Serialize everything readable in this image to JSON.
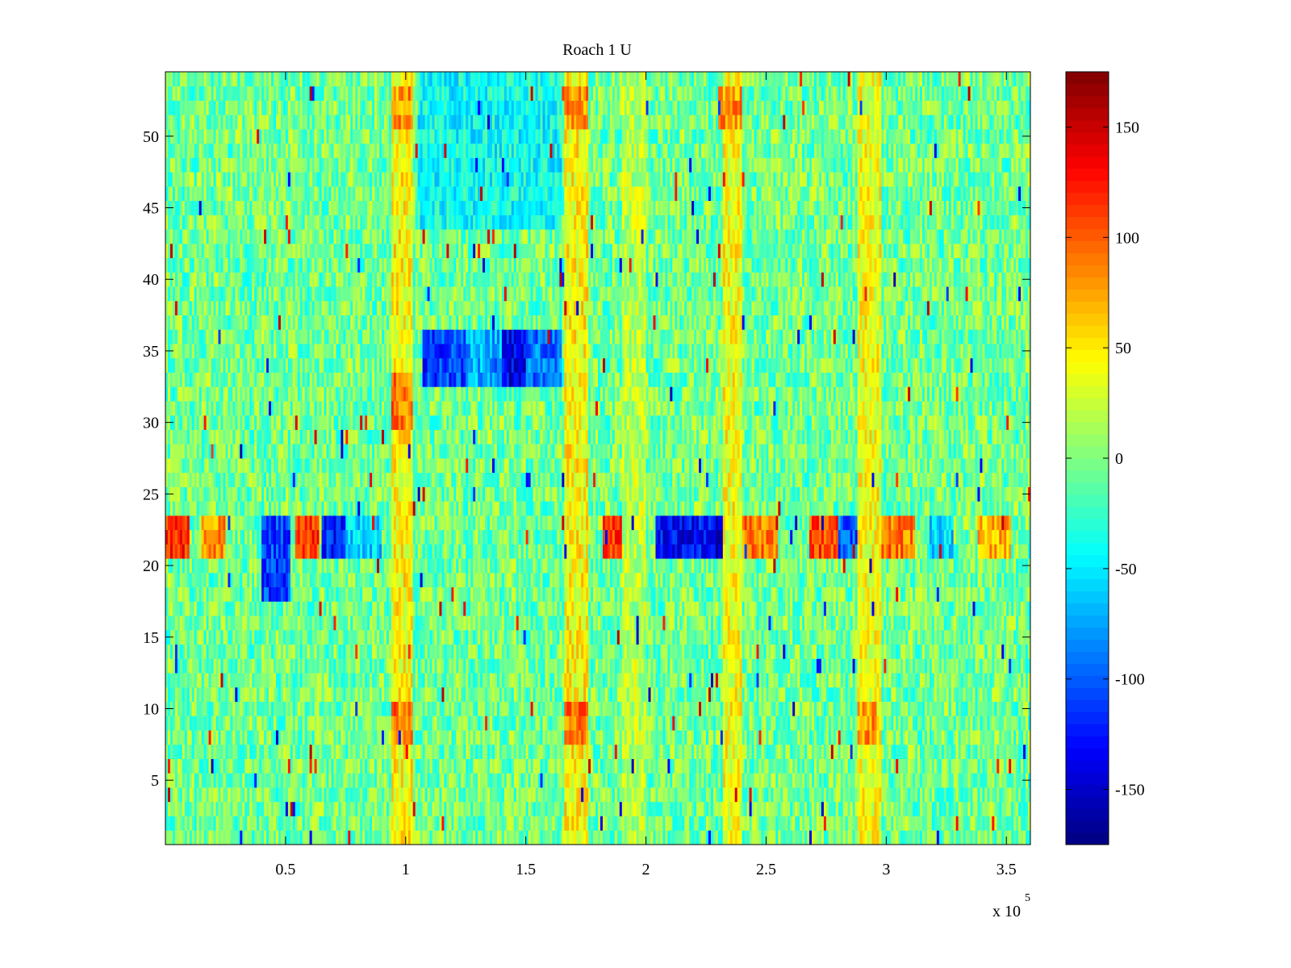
{
  "chart_data": {
    "type": "heatmap",
    "title": "Roach 1 U",
    "xlabel": "",
    "ylabel": "",
    "x_range": [
      0,
      360000
    ],
    "y_range": [
      0.5,
      54.5
    ],
    "rows": 54,
    "x_ticks": [
      {
        "value": 50000,
        "label": "0.5"
      },
      {
        "value": 100000,
        "label": "1"
      },
      {
        "value": 150000,
        "label": "1.5"
      },
      {
        "value": 200000,
        "label": "2"
      },
      {
        "value": 250000,
        "label": "2.5"
      },
      {
        "value": 300000,
        "label": "3"
      },
      {
        "value": 350000,
        "label": "3.5"
      }
    ],
    "x_exponent_label": {
      "base": "x 10",
      "exponent": "5"
    },
    "y_ticks": [
      {
        "value": 5,
        "label": "5"
      },
      {
        "value": 10,
        "label": "10"
      },
      {
        "value": 15,
        "label": "15"
      },
      {
        "value": 20,
        "label": "20"
      },
      {
        "value": 25,
        "label": "25"
      },
      {
        "value": 30,
        "label": "30"
      },
      {
        "value": 35,
        "label": "35"
      },
      {
        "value": 40,
        "label": "40"
      },
      {
        "value": 45,
        "label": "45"
      },
      {
        "value": 50,
        "label": "50"
      }
    ],
    "colorbar": {
      "colormap": "jet",
      "range": [
        -175,
        175
      ],
      "ticks": [
        {
          "value": 150,
          "label": "150"
        },
        {
          "value": 100,
          "label": "100"
        },
        {
          "value": 50,
          "label": "50"
        },
        {
          "value": 0,
          "label": "0"
        },
        {
          "value": -50,
          "label": "-50"
        },
        {
          "value": -100,
          "label": "-100"
        },
        {
          "value": -150,
          "label": "-150"
        }
      ]
    },
    "baseline_value": -5,
    "noise_amplitude": 38,
    "features": [
      {
        "kind": "band",
        "rows": [
          21,
          23
        ],
        "x_from": 0,
        "x_to": 10000,
        "value": 120
      },
      {
        "kind": "band",
        "rows": [
          21,
          23
        ],
        "x_from": 15000,
        "x_to": 25000,
        "value": 80
      },
      {
        "kind": "band",
        "rows": [
          18,
          23
        ],
        "x_from": 40000,
        "x_to": 52000,
        "value": -110
      },
      {
        "kind": "band",
        "rows": [
          21,
          23
        ],
        "x_from": 54000,
        "x_to": 64000,
        "value": 110
      },
      {
        "kind": "band",
        "rows": [
          21,
          23
        ],
        "x_from": 65000,
        "x_to": 75000,
        "value": -120
      },
      {
        "kind": "band",
        "rows": [
          21,
          23
        ],
        "x_from": 75000,
        "x_to": 90000,
        "value": -60
      },
      {
        "kind": "band",
        "rows": [
          21,
          23
        ],
        "x_from": 182000,
        "x_to": 196000,
        "value": 115
      },
      {
        "kind": "band",
        "rows": [
          21,
          23
        ],
        "x_from": 204000,
        "x_to": 228000,
        "value": -130
      },
      {
        "kind": "band",
        "rows": [
          21,
          23
        ],
        "x_from": 228000,
        "x_to": 240000,
        "value": -150
      },
      {
        "kind": "band",
        "rows": [
          21,
          23
        ],
        "x_from": 240000,
        "x_to": 255000,
        "value": 90
      },
      {
        "kind": "band",
        "rows": [
          21,
          23
        ],
        "x_from": 268000,
        "x_to": 285000,
        "value": 110
      },
      {
        "kind": "band",
        "rows": [
          21,
          23
        ],
        "x_from": 280000,
        "x_to": 288000,
        "value": -100
      },
      {
        "kind": "band",
        "rows": [
          21,
          23
        ],
        "x_from": 290000,
        "x_to": 312000,
        "value": 90
      },
      {
        "kind": "band",
        "rows": [
          21,
          23
        ],
        "x_from": 318000,
        "x_to": 328000,
        "value": -60
      },
      {
        "kind": "band",
        "rows": [
          21,
          23
        ],
        "x_from": 338000,
        "x_to": 352000,
        "value": 70
      },
      {
        "kind": "band",
        "rows": [
          33,
          36
        ],
        "x_from": 107000,
        "x_to": 125000,
        "value": -110
      },
      {
        "kind": "band",
        "rows": [
          33,
          36
        ],
        "x_from": 125000,
        "x_to": 140000,
        "value": -70
      },
      {
        "kind": "band",
        "rows": [
          33,
          36
        ],
        "x_from": 140000,
        "x_to": 150000,
        "value": -140
      },
      {
        "kind": "band",
        "rows": [
          33,
          36
        ],
        "x_from": 150000,
        "x_to": 165000,
        "value": -90
      },
      {
        "kind": "band",
        "rows": [
          44,
          54
        ],
        "x_from": 105000,
        "x_to": 165000,
        "value": -40
      },
      {
        "kind": "band",
        "rows": [
          1,
          54
        ],
        "x_from": 94000,
        "x_to": 103000,
        "value": 45
      },
      {
        "kind": "band",
        "rows": [
          1,
          54
        ],
        "x_from": 166000,
        "x_to": 176000,
        "value": 45
      },
      {
        "kind": "band",
        "rows": [
          1,
          54
        ],
        "x_from": 232000,
        "x_to": 240000,
        "value": 40
      },
      {
        "kind": "band",
        "rows": [
          1,
          54
        ],
        "x_from": 288000,
        "x_to": 298000,
        "value": 40
      },
      {
        "kind": "band",
        "rows": [
          1,
          54
        ],
        "x_from": 190000,
        "x_to": 200000,
        "value": 20
      },
      {
        "kind": "band",
        "rows": [
          30,
          33
        ],
        "x_from": 94000,
        "x_to": 103000,
        "value": 90
      },
      {
        "kind": "band",
        "rows": [
          8,
          10
        ],
        "x_from": 94000,
        "x_to": 103000,
        "value": 90
      },
      {
        "kind": "band",
        "rows": [
          8,
          10
        ],
        "x_from": 166000,
        "x_to": 176000,
        "value": 90
      },
      {
        "kind": "band",
        "rows": [
          8,
          10
        ],
        "x_from": 288000,
        "x_to": 296000,
        "value": 80
      },
      {
        "kind": "band",
        "rows": [
          51,
          53
        ],
        "x_from": 94000,
        "x_to": 103000,
        "value": 80
      },
      {
        "kind": "band",
        "rows": [
          51,
          53
        ],
        "x_from": 166000,
        "x_to": 176000,
        "value": 80
      },
      {
        "kind": "band",
        "rows": [
          51,
          53
        ],
        "x_from": 230000,
        "x_to": 240000,
        "value": 80
      }
    ]
  }
}
